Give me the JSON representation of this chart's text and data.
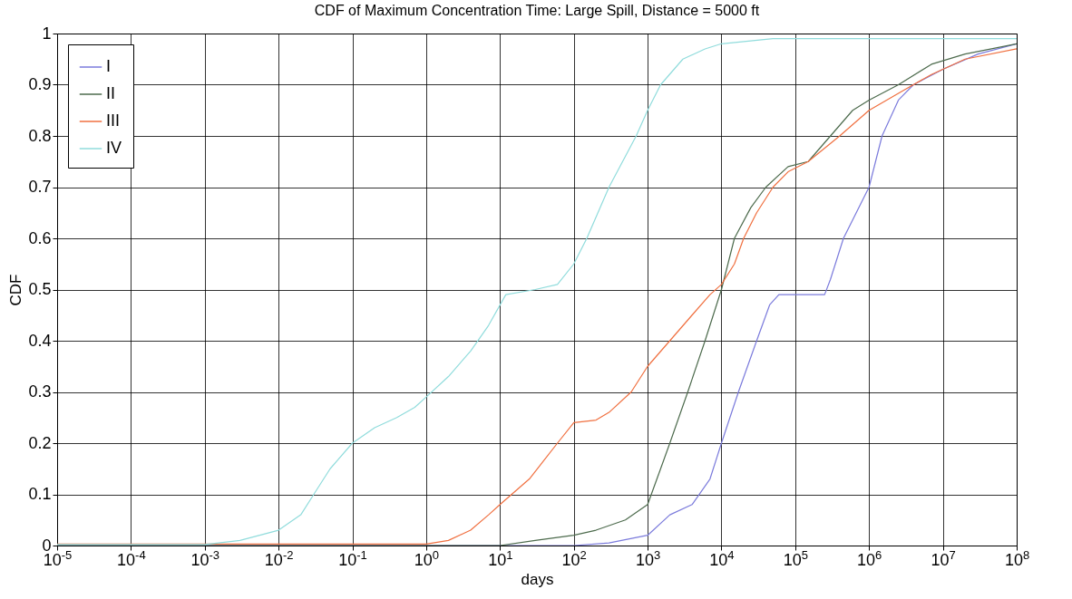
{
  "chart_data": {
    "type": "line",
    "title": "CDF of Maximum Concentration Time: Large Spill, Distance = 5000 ft",
    "xlabel": "days",
    "ylabel": "CDF",
    "log": "x",
    "grid": true,
    "legend": "top left",
    "marker": "none",
    "line_style": "solid",
    "xlim": [
      1e-05,
      100000000
    ],
    "xticks": [
      {
        "value": 1e-05,
        "label": "10$^{-5}$"
      },
      {
        "value": 0.0001,
        "label": "10$^{-4}$"
      },
      {
        "value": 0.001,
        "label": "10$^{-3}$"
      },
      {
        "value": 0.01,
        "label": "10$^{-2}$"
      },
      {
        "value": 0.1,
        "label": "10$^{-1}$"
      },
      {
        "value": 1,
        "label": "10$^{0}$"
      },
      {
        "value": 10,
        "label": "10$^{1}$"
      },
      {
        "value": 100,
        "label": "10$^{2}$"
      },
      {
        "value": 1000,
        "label": "10$^{3}$"
      },
      {
        "value": 10000,
        "label": "10$^{4}$"
      },
      {
        "value": 100000,
        "label": "10$^{5}$"
      },
      {
        "value": 1000000,
        "label": "10$^{6}$"
      },
      {
        "value": 10000000,
        "label": "10$^{7}$"
      },
      {
        "value": 100000000,
        "label": "10$^{8}$"
      }
    ],
    "ylim": [
      0,
      1
    ],
    "yticks": [
      0,
      0.1,
      0.2,
      0.3,
      0.4,
      0.5,
      0.6,
      0.7,
      0.8,
      0.9,
      1
    ],
    "series": [
      {
        "name": "I",
        "color": "#7b7bdc",
        "x": [
          1e-05,
          100,
          300,
          1000,
          2000,
          4000,
          7000,
          10000,
          17000,
          30000,
          45000,
          60000,
          250000,
          300000,
          450000,
          1000000,
          1500000,
          2500000,
          4000000,
          10000000,
          30000000,
          100000000
        ],
        "values": [
          0,
          0,
          0.005,
          0.02,
          0.06,
          0.08,
          0.13,
          0.2,
          0.3,
          0.4,
          0.47,
          0.49,
          0.49,
          0.52,
          0.6,
          0.7,
          0.8,
          0.87,
          0.9,
          0.93,
          0.96,
          0.98
        ]
      },
      {
        "name": "II",
        "color": "#4d6b4d",
        "x": [
          1e-05,
          10,
          30,
          100,
          200,
          500,
          1000,
          1500,
          2000,
          3500,
          6000,
          10000,
          15000,
          25000,
          40000,
          80000,
          150000,
          300000,
          600000,
          1000000,
          2500000,
          7000000,
          20000000,
          100000000
        ],
        "values": [
          0,
          0,
          0.01,
          0.02,
          0.03,
          0.05,
          0.08,
          0.15,
          0.2,
          0.3,
          0.4,
          0.5,
          0.6,
          0.66,
          0.7,
          0.74,
          0.75,
          0.8,
          0.85,
          0.87,
          0.9,
          0.94,
          0.96,
          0.98
        ]
      },
      {
        "name": "III",
        "color": "#f07040",
        "x": [
          1e-05,
          1,
          2,
          4,
          7,
          10,
          25,
          60,
          100,
          200,
          300,
          600,
          1000,
          2000,
          4000,
          7000,
          10000,
          15000,
          20000,
          30000,
          50000,
          80000,
          150000,
          400000,
          1000000,
          3000000,
          7000000,
          20000000,
          100000000
        ],
        "values": [
          0.003,
          0.003,
          0.01,
          0.03,
          0.06,
          0.08,
          0.13,
          0.2,
          0.24,
          0.245,
          0.26,
          0.3,
          0.35,
          0.4,
          0.45,
          0.49,
          0.51,
          0.55,
          0.6,
          0.65,
          0.7,
          0.73,
          0.75,
          0.8,
          0.85,
          0.89,
          0.92,
          0.95,
          0.97
        ]
      },
      {
        "name": "IV",
        "color": "#90dcdc",
        "x": [
          1e-05,
          0.001,
          0.003,
          0.01,
          0.02,
          0.03,
          0.05,
          0.1,
          0.2,
          0.4,
          0.7,
          1,
          2,
          4,
          7,
          12,
          30,
          60,
          100,
          150,
          300,
          700,
          1000,
          1500,
          3000,
          6000,
          10000,
          50000,
          100000000
        ],
        "values": [
          0.002,
          0.002,
          0.01,
          0.03,
          0.06,
          0.1,
          0.15,
          0.2,
          0.23,
          0.25,
          0.27,
          0.29,
          0.33,
          0.38,
          0.43,
          0.49,
          0.5,
          0.51,
          0.55,
          0.6,
          0.7,
          0.8,
          0.85,
          0.9,
          0.95,
          0.97,
          0.98,
          0.99,
          0.99
        ]
      }
    ]
  }
}
